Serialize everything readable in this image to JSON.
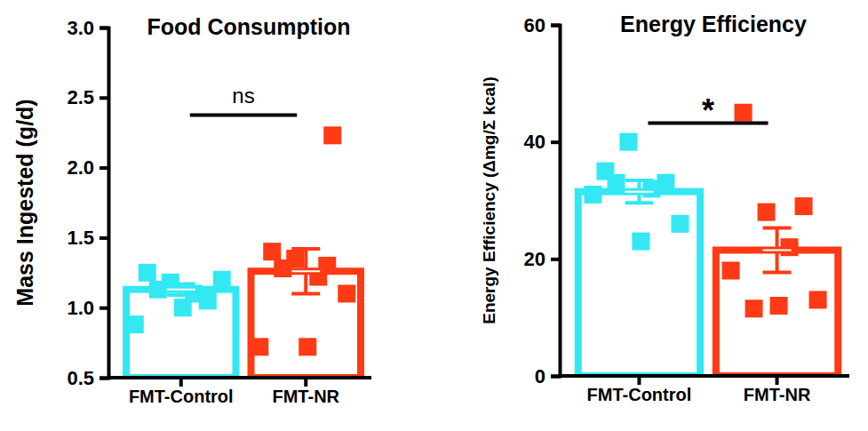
{
  "chart_data": [
    {
      "type": "bar",
      "title": "Food Consumption",
      "y_label": "Mass Ingested (g/d)",
      "categories": [
        "FMT-Control",
        "FMT-NR"
      ],
      "values": [
        1.13,
        1.26
      ],
      "errors": [
        0.04,
        0.16
      ],
      "points": [
        [
          1.25,
          1.05,
          1.18,
          1.1,
          0.88,
          1.2,
          1.0,
          1.13
        ],
        [
          1.4,
          2.23,
          1.35,
          1.22,
          0.72,
          1.1,
          0.72,
          1.28,
          1.3
        ]
      ],
      "colors": [
        "#33e8f2",
        "#ff3a14"
      ],
      "ylim": [
        0.5,
        3.0
      ],
      "yticks": [
        0.5,
        {
          "value": 1.0,
          "label": "1.0"
        },
        1.5,
        {
          "value": 2.0,
          "label": "2.0"
        },
        2.5,
        {
          "value": 3.0,
          "label": "3.0"
        }
      ],
      "annotation": "ns",
      "marker": "square"
    },
    {
      "type": "bar",
      "title": "Energy Efficiency",
      "y_label": "Energy Efficiency (Δmg/Σ kcal)",
      "categories": [
        "FMT-Control",
        "FMT-NR"
      ],
      "values": [
        31.5,
        21.5
      ],
      "errors": [
        1.9,
        3.8
      ],
      "points": [
        [
          35,
          33,
          40,
          32,
          31,
          26,
          23,
          33
        ],
        [
          45,
          29,
          28,
          22,
          18,
          13,
          12,
          11.5
        ]
      ],
      "colors": [
        "#33e8f2",
        "#ff3a14"
      ],
      "ylim": [
        0,
        60
      ],
      "yticks": [
        0,
        20,
        40,
        60
      ],
      "annotation": "*",
      "marker": "square"
    }
  ]
}
